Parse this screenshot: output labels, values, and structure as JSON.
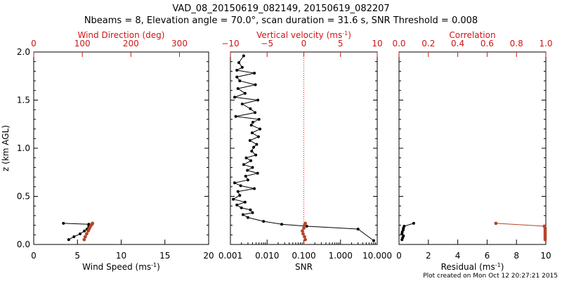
{
  "header": {
    "title_line1": "VAD_08_20150619_082149, 20150619_082207",
    "title_line2": "Nbeams = 8, Elevation angle = 70.0°, scan duration = 31.6 s, SNR Threshold = 0.008"
  },
  "footer": {
    "credit": "Plot created on Mon Oct 12 20:27:21 2015"
  },
  "colors": {
    "black": "#000000",
    "red": "#d01515",
    "brown": "#b5442a"
  },
  "chart_data": [
    {
      "type": "line",
      "panel": "wind",
      "ylabel": "z (km AGL)",
      "ylim": [
        0,
        2
      ],
      "yticks": [
        0.0,
        0.5,
        1.0,
        1.5,
        2.0
      ],
      "ytick_labels": [
        "0.0",
        "0.5",
        "1.0",
        "1.5",
        "2.0"
      ],
      "bottom_axis": {
        "label": "Wind Speed (ms",
        "label_sup": "-1",
        "label_tail": ")",
        "lim": [
          0,
          20
        ],
        "ticks": [
          0,
          5,
          10,
          15,
          20
        ],
        "tick_labels": [
          "0",
          "5",
          "10",
          "15",
          "20"
        ]
      },
      "top_axis": {
        "label": "Wind Direction (deg)",
        "lim": [
          0,
          360
        ],
        "ticks": [
          0,
          100,
          200,
          300
        ],
        "tick_labels": [
          "0",
          "100",
          "200",
          "300"
        ]
      },
      "series": [
        {
          "name": "Wind Speed",
          "axis": "bottom",
          "color": "#000000",
          "x": [
            4.0,
            4.6,
            5.3,
            5.8,
            6.1,
            6.3,
            6.3,
            6.3,
            3.4
          ],
          "z": [
            0.05,
            0.08,
            0.11,
            0.14,
            0.16,
            0.18,
            0.2,
            0.21,
            0.22
          ]
        },
        {
          "name": "Wind Direction",
          "axis": "top",
          "color": "#b5442a",
          "x": [
            104,
            106,
            109,
            112,
            114,
            116,
            118,
            120,
            121
          ],
          "z": [
            0.05,
            0.08,
            0.11,
            0.14,
            0.16,
            0.18,
            0.2,
            0.21,
            0.22
          ]
        }
      ]
    },
    {
      "type": "line",
      "panel": "snr",
      "ylim": [
        0,
        2
      ],
      "bottom_axis": {
        "label": "SNR",
        "scale": "log",
        "lim": [
          0.001,
          10
        ],
        "ticks": [
          0.001,
          0.01,
          0.1,
          1,
          10
        ],
        "tick_labels": [
          "0.001",
          "0.010",
          "0.100",
          "1.000",
          "10.000"
        ]
      },
      "top_axis": {
        "label": "Vertical velocity (ms",
        "label_sup": "-1",
        "label_tail": ")",
        "lim": [
          -10,
          10
        ],
        "ticks": [
          -10,
          -5,
          0,
          5,
          10
        ],
        "tick_labels": [
          "−10",
          "−5",
          "0",
          "5",
          "10"
        ]
      },
      "reference_line": {
        "axis": "top",
        "x": 0
      },
      "series": [
        {
          "name": "SNR",
          "axis": "bottom",
          "color": "#000000",
          "x": [
            8.0,
            3.0,
            0.12,
            0.025,
            0.008,
            0.003,
            0.0022,
            0.004,
            0.0035,
            0.002,
            0.0015,
            0.0025,
            0.0012,
            0.0018,
            0.0016,
            0.0045,
            0.0019,
            0.0013,
            0.003,
            0.0026,
            0.0055,
            0.0029,
            0.004,
            0.0023,
            0.0036,
            0.0027,
            0.0049,
            0.0038,
            0.0043,
            0.0052,
            0.0034,
            0.0058,
            0.0039,
            0.0064,
            0.0037,
            0.0041,
            0.006,
            0.0014,
            0.0047,
            0.0035,
            0.0021,
            0.0056,
            0.0013,
            0.0025,
            0.0016,
            0.0048,
            0.0018,
            0.0015,
            0.0045,
            0.0015,
            0.0021,
            0.0017,
            0.0023
          ],
          "z": [
            0.04,
            0.16,
            0.19,
            0.21,
            0.24,
            0.28,
            0.31,
            0.33,
            0.36,
            0.38,
            0.41,
            0.44,
            0.47,
            0.51,
            0.55,
            0.58,
            0.61,
            0.64,
            0.67,
            0.71,
            0.74,
            0.77,
            0.8,
            0.83,
            0.87,
            0.9,
            0.93,
            0.97,
            1.01,
            1.04,
            1.08,
            1.12,
            1.16,
            1.2,
            1.24,
            1.27,
            1.3,
            1.33,
            1.37,
            1.41,
            1.46,
            1.5,
            1.53,
            1.57,
            1.62,
            1.66,
            1.7,
            1.74,
            1.78,
            1.81,
            1.84,
            1.89,
            1.96
          ]
        },
        {
          "name": "Vertical velocity",
          "axis": "top",
          "color": "#b5442a",
          "x": [
            0.2,
            0.1,
            -0.1,
            -0.2,
            0.0,
            0.1,
            0.2
          ],
          "z": [
            0.05,
            0.08,
            0.11,
            0.14,
            0.17,
            0.2,
            0.22
          ]
        }
      ]
    },
    {
      "type": "line",
      "panel": "residual",
      "ylim": [
        0,
        2
      ],
      "bottom_axis": {
        "label": "Residual (ms",
        "label_sup": "-1",
        "label_tail": ")",
        "lim": [
          0,
          10
        ],
        "ticks": [
          0,
          2,
          4,
          6,
          8,
          10
        ],
        "tick_labels": [
          "0",
          "2",
          "4",
          "6",
          "8",
          "10"
        ]
      },
      "top_axis": {
        "label": "Correlation",
        "lim": [
          0,
          1
        ],
        "ticks": [
          0,
          0.2,
          0.4,
          0.6,
          0.8,
          1.0
        ],
        "tick_labels": [
          "0.0",
          "0.2",
          "0.4",
          "0.6",
          "0.8",
          "1.0"
        ]
      },
      "series": [
        {
          "name": "Residual",
          "axis": "bottom",
          "color": "#000000",
          "x": [
            0.2,
            0.25,
            0.3,
            0.2,
            0.22,
            0.28,
            0.3,
            0.35,
            1.0
          ],
          "z": [
            0.05,
            0.07,
            0.09,
            0.11,
            0.13,
            0.15,
            0.17,
            0.19,
            0.22
          ]
        },
        {
          "name": "Correlation",
          "axis": "top",
          "color": "#b5442a",
          "x": [
            0.995,
            0.995,
            0.995,
            0.995,
            0.995,
            0.995,
            0.995,
            0.99,
            0.66
          ],
          "z": [
            0.05,
            0.07,
            0.09,
            0.11,
            0.13,
            0.15,
            0.17,
            0.19,
            0.22
          ]
        }
      ]
    }
  ]
}
